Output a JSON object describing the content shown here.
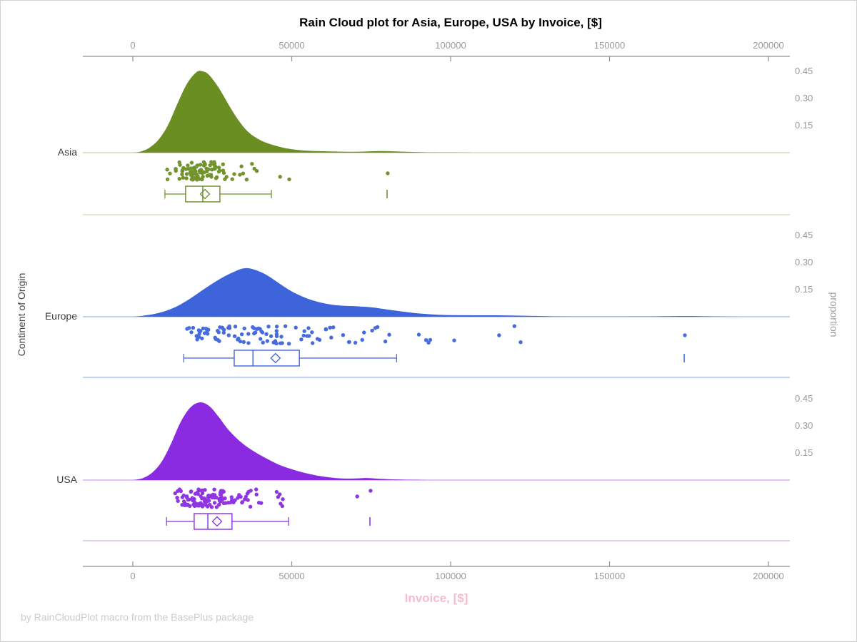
{
  "title": "Rain Cloud plot for Asia, Europe, USA by Invoice, [$]",
  "footnote": "by RainCloudPlot macro from the BasePlus package",
  "chart_data": {
    "type": "raincloud (half-violin density + jittered strip + box plot)",
    "x": {
      "label": "Invoice, [$]",
      "label_color": "#F7BCCC",
      "min": 0,
      "max": 200000,
      "ticks": [
        0,
        50000,
        100000,
        150000,
        200000
      ],
      "tick_labels": [
        "0",
        "50000",
        "100000",
        "150000",
        "200000"
      ]
    },
    "y_label": "Continent of Origin",
    "y2_label": "proportion",
    "proportion_ticks": [
      0.45,
      0.3,
      0.15
    ],
    "proportion_tick_labels": [
      "0.45",
      "0.30",
      "0.15"
    ],
    "grid": false,
    "legend": "none",
    "groups": [
      {
        "name": "Asia",
        "color": "#6B8E23",
        "baseline_color": "#C7D5A0",
        "separator_color": "#D8E1C0",
        "density": [
          [
            0,
            0
          ],
          [
            2000,
            0.004
          ],
          [
            5000,
            0.025
          ],
          [
            8000,
            0.07
          ],
          [
            11000,
            0.15
          ],
          [
            14000,
            0.27
          ],
          [
            17000,
            0.38
          ],
          [
            20000,
            0.445
          ],
          [
            22000,
            0.45
          ],
          [
            24000,
            0.43
          ],
          [
            27000,
            0.36
          ],
          [
            30000,
            0.27
          ],
          [
            33000,
            0.185
          ],
          [
            36000,
            0.12
          ],
          [
            39000,
            0.08
          ],
          [
            42000,
            0.055
          ],
          [
            45000,
            0.038
          ],
          [
            48000,
            0.025
          ],
          [
            52000,
            0.015
          ],
          [
            56000,
            0.01
          ],
          [
            62000,
            0.007
          ],
          [
            70000,
            0.005
          ],
          [
            78000,
            0.009
          ],
          [
            84000,
            0.006
          ],
          [
            92000,
            0.002
          ],
          [
            100000,
            0.001
          ],
          [
            120000,
            0
          ],
          [
            200000,
            0
          ]
        ],
        "box": {
          "whisker_low": 10100,
          "q1": 16600,
          "median": 22000,
          "mean": 22700,
          "q3": 27400,
          "whisker_high": 43600,
          "far_outlier": 80000
        },
        "rain": {
          "count": 100,
          "seed": 7,
          "log_mean": 9.976,
          "log_sd": 0.3,
          "min": 10000,
          "max": 62000,
          "outliers": [
            [
              80200,
              0.64
            ]
          ]
        }
      },
      {
        "name": "Europe",
        "color": "#3E64DC",
        "baseline_color": "#9FB5E8",
        "separator_color": "#AEC2EC",
        "density": [
          [
            0,
            0
          ],
          [
            3000,
            0.005
          ],
          [
            8000,
            0.02
          ],
          [
            13000,
            0.05
          ],
          [
            18000,
            0.1
          ],
          [
            23000,
            0.16
          ],
          [
            28000,
            0.215
          ],
          [
            32000,
            0.25
          ],
          [
            35000,
            0.268
          ],
          [
            38000,
            0.262
          ],
          [
            42000,
            0.232
          ],
          [
            46000,
            0.185
          ],
          [
            50000,
            0.14
          ],
          [
            55000,
            0.1
          ],
          [
            60000,
            0.075
          ],
          [
            65000,
            0.062
          ],
          [
            70000,
            0.058
          ],
          [
            75000,
            0.052
          ],
          [
            80000,
            0.04
          ],
          [
            85000,
            0.028
          ],
          [
            90000,
            0.018
          ],
          [
            95000,
            0.012
          ],
          [
            100000,
            0.009
          ],
          [
            108000,
            0.008
          ],
          [
            115000,
            0.008
          ],
          [
            122000,
            0.006
          ],
          [
            130000,
            0.003
          ],
          [
            140000,
            0.001
          ],
          [
            155000,
            0.001
          ],
          [
            168000,
            0.003
          ],
          [
            174000,
            0.004
          ],
          [
            182000,
            0.002
          ],
          [
            192000,
            0
          ],
          [
            200000,
            0
          ]
        ],
        "box": {
          "whisker_low": 16000,
          "q1": 31900,
          "median": 37800,
          "mean": 44900,
          "q3": 52400,
          "whisker_high": 83000,
          "far_outlier": 173500
        },
        "rain": {
          "count": 105,
          "seed": 13,
          "log_mean": 10.545,
          "log_sd": 0.48,
          "min": 16000,
          "max": 128000,
          "outliers": [
            [
              173700,
              0.52
            ]
          ]
        }
      },
      {
        "name": "USA",
        "color": "#8A2BE2",
        "baseline_color": "#C8A0EA",
        "separator_color": "#D6BCF0",
        "density": [
          [
            0,
            0
          ],
          [
            3000,
            0.01
          ],
          [
            6000,
            0.04
          ],
          [
            9000,
            0.1
          ],
          [
            12000,
            0.2
          ],
          [
            15000,
            0.32
          ],
          [
            18000,
            0.4
          ],
          [
            21000,
            0.43
          ],
          [
            24000,
            0.41
          ],
          [
            27000,
            0.35
          ],
          [
            30000,
            0.28
          ],
          [
            34000,
            0.21
          ],
          [
            38000,
            0.16
          ],
          [
            42000,
            0.12
          ],
          [
            46000,
            0.085
          ],
          [
            50000,
            0.06
          ],
          [
            54000,
            0.04
          ],
          [
            58000,
            0.025
          ],
          [
            62000,
            0.015
          ],
          [
            66000,
            0.009
          ],
          [
            70000,
            0.009
          ],
          [
            74000,
            0.011
          ],
          [
            78000,
            0.007
          ],
          [
            84000,
            0.003
          ],
          [
            92000,
            0.001
          ],
          [
            100000,
            0
          ],
          [
            200000,
            0
          ]
        ],
        "box": {
          "whisker_low": 10600,
          "q1": 19300,
          "median": 23600,
          "mean": 26500,
          "q3": 31200,
          "whisker_high": 49000,
          "far_outlier": 74600
        },
        "rain": {
          "count": 115,
          "seed": 29,
          "log_mean": 10.086,
          "log_sd": 0.32,
          "min": 10500,
          "max": 62000,
          "outliers": [
            [
              70600,
              0.4
            ],
            [
              74800,
              0.08
            ]
          ]
        }
      }
    ]
  }
}
